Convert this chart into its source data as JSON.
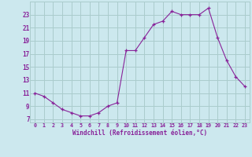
{
  "x": [
    0,
    1,
    2,
    3,
    4,
    5,
    6,
    7,
    8,
    9,
    10,
    11,
    12,
    13,
    14,
    15,
    16,
    17,
    18,
    19,
    20,
    21,
    22,
    23
  ],
  "y": [
    11,
    10.5,
    9.5,
    8.5,
    8,
    7.5,
    7.5,
    8,
    9,
    9.5,
    17.5,
    17.5,
    19.5,
    21.5,
    22,
    23.5,
    23,
    23,
    23,
    24,
    19.5,
    16,
    13.5,
    12
  ],
  "line_color": "#882299",
  "marker_color": "#882299",
  "bg_color": "#cce8ee",
  "grid_color": "#aacccc",
  "xlabel": "Windchill (Refroidissement éolien,°C)",
  "ylabel_ticks": [
    7,
    9,
    11,
    13,
    15,
    17,
    19,
    21,
    23
  ],
  "xlim": [
    -0.5,
    23.5
  ],
  "ylim": [
    6.5,
    25.0
  ],
  "xtick_labels": [
    "0",
    "1",
    "2",
    "3",
    "4",
    "5",
    "6",
    "7",
    "8",
    "9",
    "10",
    "11",
    "12",
    "13",
    "14",
    "15",
    "16",
    "17",
    "18",
    "19",
    "20",
    "21",
    "22",
    "23"
  ]
}
